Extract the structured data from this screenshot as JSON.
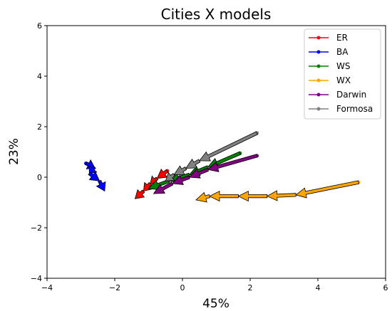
{
  "chart_data": {
    "type": "line",
    "title": "Cities X models",
    "xlabel": "45%",
    "ylabel": "23%",
    "xlim": [
      -4,
      6
    ],
    "ylim": [
      -4,
      6
    ],
    "xticks": [
      -4,
      -2,
      0,
      2,
      4,
      6
    ],
    "yticks": [
      -4,
      -2,
      0,
      2,
      4,
      6
    ],
    "xtick_labels": [
      "−4",
      "−2",
      "0",
      "2",
      "4",
      "6"
    ],
    "ytick_labels": [
      "−4",
      "−2",
      "0",
      "2",
      "4",
      "6"
    ],
    "grid": false,
    "legend_position": "top-right",
    "series": [
      {
        "name": "ER",
        "color": "#ff0000",
        "x": [
          -0.45,
          -0.75,
          -0.95,
          -1.15,
          -1.4
        ],
        "y": [
          0.25,
          -0.05,
          -0.25,
          -0.55,
          -0.85
        ]
      },
      {
        "name": "BA",
        "color": "#0000ff",
        "x": [
          -2.85,
          -2.6,
          -2.75,
          -2.45,
          -2.3
        ],
        "y": [
          0.55,
          0.4,
          0.15,
          -0.15,
          -0.55
        ]
      },
      {
        "name": "WS",
        "color": "#008000",
        "x": [
          1.7,
          0.75,
          0.2,
          -0.4,
          -1.0
        ],
        "y": [
          0.95,
          0.4,
          0.1,
          -0.15,
          -0.45
        ]
      },
      {
        "name": "WX",
        "color": "#ffa500",
        "x": [
          5.2,
          3.35,
          2.5,
          1.65,
          0.8,
          0.4
        ],
        "y": [
          -0.2,
          -0.7,
          -0.75,
          -0.75,
          -0.75,
          -0.9
        ]
      },
      {
        "name": "Darwin",
        "color": "#800080",
        "x": [
          2.2,
          0.75,
          0.2,
          -0.3,
          -0.85
        ],
        "y": [
          0.85,
          0.3,
          0.0,
          -0.25,
          -0.65
        ]
      },
      {
        "name": "Formosa",
        "color": "#808080",
        "x": [
          2.2,
          0.5,
          0.1,
          -0.25,
          -0.5
        ],
        "y": [
          1.75,
          0.65,
          0.35,
          0.1,
          -0.15
        ]
      }
    ]
  }
}
